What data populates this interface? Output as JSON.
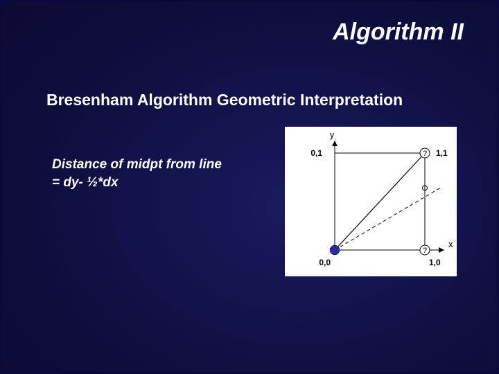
{
  "title": "Algorithm II",
  "subtitle": "Bresenham Algorithm Geometric Interpretation",
  "body_line1": "Distance of midpt from line",
  "body_line2": "= dy- ½*dx",
  "diagram": {
    "type": "diagram",
    "background_color": "#ffffff",
    "stroke_color": "#000000",
    "marker_fill": "#2a2aa0",
    "axis": {
      "x_label": "x",
      "y_label": "y"
    },
    "points": [
      {
        "gx": 0,
        "gy": 0,
        "label": "0,0",
        "label_pos": "below"
      },
      {
        "gx": 0,
        "gy": 1,
        "label": "0,1",
        "label_pos": "left"
      },
      {
        "gx": 1,
        "gy": 0,
        "label": "1,0",
        "label_pos": "below"
      },
      {
        "gx": 1,
        "gy": 1,
        "label": "1,1",
        "label_pos": "right"
      }
    ],
    "candidates": [
      {
        "gx": 1.0,
        "gy": 1.0,
        "q": "?"
      },
      {
        "gx": 1.0,
        "gy": 0.0,
        "q": "?"
      }
    ],
    "origin_marker_radius": 7,
    "slope_hint": 0.64,
    "font_size_labels": 12,
    "font_size_axis": 13,
    "font_weight_labels": "bold"
  },
  "colors": {
    "slide_bg_inner": "#1a1a60",
    "slide_bg_outer": "#050525",
    "text": "#ffffff"
  }
}
